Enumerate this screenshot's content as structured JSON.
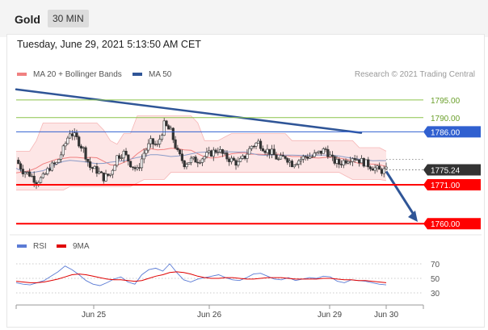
{
  "header": {
    "title": "Gold",
    "timeframe": "30 MIN"
  },
  "datetime": "Tuesday, June 29, 2021 5:13:50 AM CET",
  "copyright": "Research © 2021 Trading Central",
  "colors": {
    "candle_up": "#333333",
    "candle_down": "#333333",
    "bollinger_fill": "#fde0e0",
    "ma20": "#f08080",
    "ma50": "#2f5597",
    "trendline": "#2f5597",
    "support": "#ff0000",
    "resistance_blue": "#3060d0",
    "resistance_green": "#8bc34a",
    "rsi": "#5b7bd5",
    "ma9": "#e00000",
    "current_bg": "#333333"
  },
  "chart_data": [
    {
      "type": "candlestick",
      "legend": [
        {
          "name": "MA 20 + Bollinger Bands",
          "color": "#f08080"
        },
        {
          "name": "MA 50",
          "color": "#2f5597"
        }
      ],
      "ylim": [
        1758,
        1800
      ],
      "x_ticks": [
        "Jun 25",
        "Jun 26",
        "Jun 29",
        "Jun 30"
      ],
      "levels": [
        {
          "label": "1795.00",
          "value": 1795.0,
          "kind": "resistance-green"
        },
        {
          "label": "1790.00",
          "value": 1790.0,
          "kind": "resistance-green"
        },
        {
          "label": "1786.00",
          "value": 1786.0,
          "kind": "resistance-blue"
        },
        {
          "label": "1775.24",
          "value": 1775.24,
          "kind": "current"
        },
        {
          "label": "1771.00",
          "value": 1771.0,
          "kind": "support"
        },
        {
          "label": "1760.00",
          "value": 1760.0,
          "kind": "support"
        }
      ],
      "close_path": [
        1778,
        1775,
        1774,
        1772,
        1773,
        1776,
        1777,
        1781,
        1786,
        1784,
        1781,
        1776,
        1775,
        1773,
        1774,
        1779,
        1780,
        1777,
        1775,
        1780,
        1783,
        1782,
        1788,
        1786,
        1780,
        1777,
        1778,
        1778,
        1779,
        1780,
        1781,
        1779,
        1778,
        1777,
        1779,
        1782,
        1783,
        1781,
        1780,
        1778,
        1779,
        1777,
        1778,
        1779,
        1779,
        1780,
        1781,
        1778,
        1777,
        1778,
        1779,
        1778,
        1777,
        1776,
        1775,
        1775
      ],
      "trendline": {
        "from": 1798,
        "to": 1785.7
      },
      "forecast_arrow": {
        "from": 1774.8,
        "to": 1760.5
      }
    },
    {
      "type": "line",
      "legend": [
        {
          "name": "RSI",
          "color": "#5b7bd5"
        },
        {
          "name": "9MA",
          "color": "#e00000"
        }
      ],
      "y_ticks": [
        "70",
        "50",
        "30"
      ],
      "ylim": [
        20,
        80
      ],
      "series": [
        {
          "name": "RSI",
          "values": [
            44,
            42,
            41,
            44,
            47,
            53,
            59,
            67,
            62,
            55,
            47,
            42,
            40,
            44,
            49,
            52,
            45,
            42,
            55,
            62,
            64,
            60,
            70,
            58,
            48,
            45,
            49,
            51,
            53,
            55,
            51,
            48,
            47,
            51,
            56,
            57,
            53,
            49,
            48,
            51,
            47,
            49,
            51,
            50,
            53,
            52,
            46,
            44,
            48,
            47,
            46,
            44,
            42,
            41
          ]
        },
        {
          "name": "9MA",
          "values": [
            46,
            45,
            44,
            44,
            45,
            47,
            49,
            52,
            55,
            56,
            55,
            53,
            51,
            49,
            48,
            48,
            47,
            46,
            47,
            50,
            53,
            55,
            58,
            59,
            58,
            56,
            53,
            51,
            50,
            50,
            51,
            51,
            50,
            49,
            49,
            50,
            51,
            51,
            51,
            50,
            49,
            49,
            49,
            49,
            50,
            50,
            49,
            48,
            48,
            47,
            47,
            46,
            45,
            44
          ]
        }
      ]
    }
  ]
}
